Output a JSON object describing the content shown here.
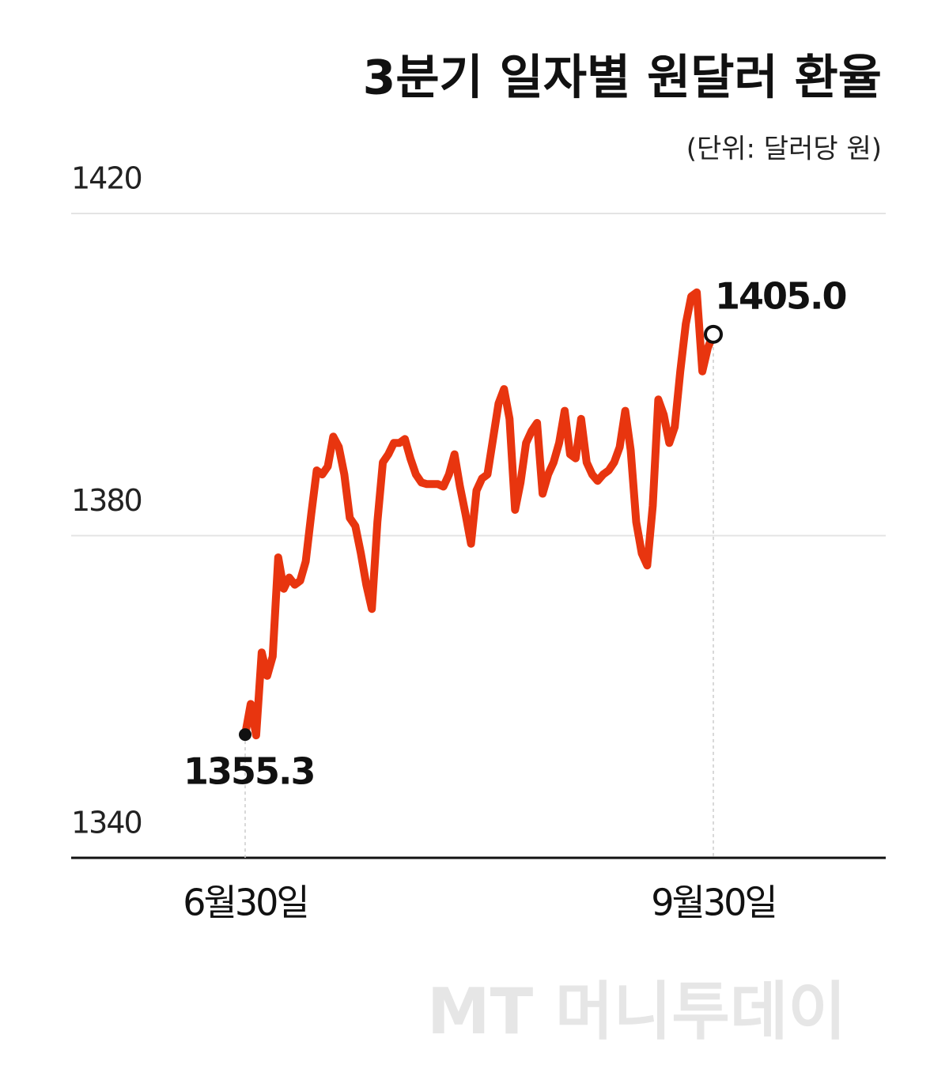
{
  "chart_data": {
    "type": "line",
    "title": "3분기 일자별 원달러 환율",
    "subtitle": "(단위: 달러당 원)",
    "watermark": "MT 머니투데이",
    "categories": [
      "6월30일",
      null,
      null,
      null,
      null,
      null,
      null,
      null,
      null,
      null,
      null,
      null,
      null,
      null,
      null,
      null,
      null,
      null,
      null,
      null,
      null,
      null,
      null,
      null,
      null,
      null,
      null,
      null,
      null,
      null,
      null,
      null,
      null,
      null,
      null,
      null,
      null,
      null,
      null,
      null,
      null,
      null,
      null,
      null,
      null,
      null,
      null,
      null,
      null,
      null,
      null,
      null,
      null,
      null,
      null,
      null,
      null,
      null,
      null,
      null,
      null,
      null,
      null,
      null,
      null,
      null,
      null,
      null,
      null,
      null,
      null,
      null,
      null,
      null,
      null,
      null,
      null,
      null,
      null,
      null,
      null,
      null,
      null,
      null,
      null,
      "9월30일"
    ],
    "values": [
      1355.3,
      1359.1,
      1355.2,
      1365.5,
      1362.6,
      1365.0,
      1377.3,
      1373.4,
      1374.8,
      1373.9,
      1374.4,
      1376.8,
      1382.7,
      1388.1,
      1387.6,
      1388.6,
      1392.3,
      1391.0,
      1387.6,
      1382.2,
      1381.2,
      1377.8,
      1373.9,
      1370.9,
      1381.7,
      1389.1,
      1390.1,
      1391.5,
      1391.5,
      1392.0,
      1389.6,
      1387.6,
      1386.6,
      1386.4,
      1386.4,
      1386.4,
      1386.1,
      1387.6,
      1390.1,
      1386.1,
      1382.7,
      1379.0,
      1385.6,
      1387.1,
      1387.6,
      1392.0,
      1396.4,
      1398.2,
      1394.5,
      1383.2,
      1386.6,
      1391.5,
      1393.0,
      1394.0,
      1385.2,
      1387.6,
      1389.1,
      1391.5,
      1395.5,
      1390.1,
      1389.6,
      1394.5,
      1389.1,
      1387.6,
      1386.8,
      1387.6,
      1388.1,
      1389.1,
      1391.0,
      1395.5,
      1390.6,
      1381.7,
      1377.8,
      1376.3,
      1383.7,
      1396.9,
      1395.0,
      1391.5,
      1393.5,
      1400.4,
      1406.3,
      1409.7,
      1410.2,
      1400.4,
      1403.3,
      1405.0
    ],
    "value_labels": [
      "1355.3",
      null,
      null,
      null,
      null,
      null,
      null,
      null,
      null,
      null,
      null,
      null,
      null,
      null,
      null,
      null,
      null,
      null,
      null,
      null,
      null,
      null,
      null,
      null,
      null,
      null,
      null,
      null,
      null,
      null,
      null,
      null,
      null,
      null,
      null,
      null,
      null,
      null,
      null,
      null,
      null,
      null,
      null,
      null,
      null,
      null,
      null,
      null,
      null,
      null,
      null,
      null,
      null,
      null,
      null,
      null,
      null,
      null,
      null,
      null,
      null,
      null,
      null,
      null,
      null,
      null,
      null,
      null,
      null,
      null,
      null,
      null,
      null,
      null,
      null,
      null,
      null,
      null,
      null,
      null,
      null,
      null,
      null,
      null,
      null,
      "1405.0"
    ],
    "color": "#e8350f",
    "ylim": [
      1340,
      1420
    ],
    "yticks": [
      1340,
      1380,
      1420
    ],
    "grid": true
  }
}
